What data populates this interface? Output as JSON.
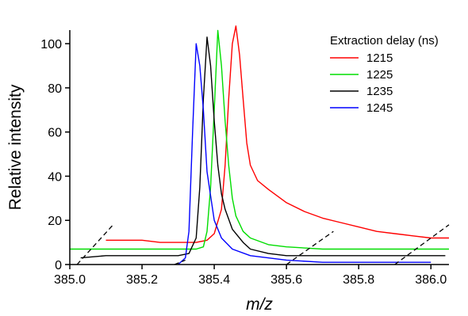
{
  "chart_data": {
    "type": "line",
    "xlabel": "m/z",
    "ylabel": "Relative intensity",
    "xlim": [
      385.0,
      386.05
    ],
    "ylim": [
      0,
      104
    ],
    "xticks": [
      385.0,
      385.2,
      385.4,
      385.6,
      385.8,
      386.0
    ],
    "xtick_labels": [
      "385.0",
      "385.2",
      "385.4",
      "385.6",
      "385.8",
      "386.0"
    ],
    "yticks": [
      0,
      20,
      40,
      60,
      80,
      100
    ],
    "ytick_labels": [
      "0",
      "20",
      "40",
      "60",
      "80",
      "100"
    ],
    "legend": {
      "title": "Extraction delay (ns)",
      "placement": "top-right"
    },
    "grid": false,
    "series": [
      {
        "name": "1215",
        "color": "#ff0000",
        "x": [
          385.1,
          385.15,
          385.2,
          385.25,
          385.3,
          385.35,
          385.38,
          385.4,
          385.42,
          385.43,
          385.44,
          385.45,
          385.46,
          385.47,
          385.48,
          385.49,
          385.5,
          385.52,
          385.55,
          385.6,
          385.65,
          385.7,
          385.75,
          385.8,
          385.85,
          385.9,
          385.95,
          386.0,
          386.05
        ],
        "y": [
          11,
          11,
          11,
          10,
          10,
          10,
          11,
          14,
          25,
          45,
          75,
          100,
          108,
          95,
          75,
          55,
          45,
          38,
          34,
          28,
          24,
          21,
          19,
          17,
          15,
          14,
          13,
          12,
          12
        ]
      },
      {
        "name": "1225",
        "color": "#00dd00",
        "x": [
          385.0,
          385.1,
          385.2,
          385.3,
          385.35,
          385.37,
          385.38,
          385.39,
          385.4,
          385.41,
          385.42,
          385.43,
          385.44,
          385.45,
          385.46,
          385.48,
          385.5,
          385.55,
          385.6,
          385.7,
          385.8,
          385.9,
          386.0,
          386.05
        ],
        "y": [
          7,
          7,
          7,
          7,
          7,
          8,
          15,
          35,
          70,
          106,
          90,
          65,
          45,
          30,
          22,
          15,
          12,
          9,
          8,
          7,
          7,
          7,
          7,
          7
        ]
      },
      {
        "name": "1235",
        "color": "#000000",
        "x": [
          385.03,
          385.1,
          385.2,
          385.3,
          385.33,
          385.35,
          385.36,
          385.37,
          385.38,
          385.39,
          385.4,
          385.41,
          385.42,
          385.43,
          385.45,
          385.48,
          385.5,
          385.55,
          385.6,
          385.7,
          385.8,
          385.9,
          386.0,
          386.04
        ],
        "y": [
          3,
          4,
          4,
          4,
          5,
          12,
          35,
          75,
          103,
          90,
          65,
          45,
          32,
          25,
          16,
          10,
          7,
          5,
          4,
          4,
          4,
          4,
          4,
          4
        ]
      },
      {
        "name": "1245",
        "color": "#0000ff",
        "x": [
          385.3,
          385.32,
          385.33,
          385.34,
          385.35,
          385.36,
          385.37,
          385.38,
          385.4,
          385.42,
          385.45,
          385.5,
          385.6,
          385.7,
          385.8,
          385.9,
          386.0
        ],
        "y": [
          0,
          3,
          15,
          60,
          100,
          90,
          70,
          42,
          20,
          12,
          7,
          4,
          2,
          1,
          1,
          1,
          1
        ]
      }
    ],
    "baselines": [
      {
        "x": [
          385.02,
          385.12
        ],
        "y": [
          0,
          18
        ]
      },
      {
        "x": [
          385.29,
          385.32
        ],
        "y": [
          0,
          2
        ]
      },
      {
        "x": [
          385.6,
          385.73
        ],
        "y": [
          0,
          15
        ]
      },
      {
        "x": [
          385.9,
          386.05
        ],
        "y": [
          0,
          18
        ]
      }
    ]
  }
}
